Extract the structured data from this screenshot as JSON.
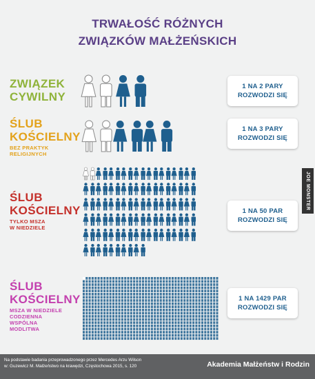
{
  "title": {
    "line1": "TRWAŁOŚĆ RÓŻNYCH",
    "line2": "ZWIĄZKÓW MAŁŻEŃSKICH"
  },
  "colors": {
    "title": "#5a3f86",
    "section1": "#8fb33a",
    "section2": "#e3a21b",
    "section3": "#c4302b",
    "section4": "#c33fae",
    "figure": "#1f5f8e",
    "box_text": "#1f5f8e"
  },
  "sections": [
    {
      "line1": "ZWIĄZEK",
      "line2": "CYWILNY",
      "sub": [],
      "ratio_line1": "1 NA 2 PARY",
      "ratio_line2": "ROZWODZI SIĘ",
      "pairs_total": 2,
      "pairs_divorcing": 1
    },
    {
      "line1": "ŚLUB",
      "line2": "KOŚCIELNY",
      "sub": [
        "BEZ PRAKTYK",
        "RELIGIJNYCH"
      ],
      "ratio_line1": "1 NA 3 PARY",
      "ratio_line2": "ROZWODZI SIĘ",
      "pairs_total": 3,
      "pairs_divorcing": 1
    },
    {
      "line1": "ŚLUB",
      "line2": "KOŚCIELNY",
      "sub": [
        "TYLKO MSZA",
        "W NIEDZIELE"
      ],
      "ratio_line1": "1 NA 50 PAR",
      "ratio_line2": "ROZWODZI SIĘ",
      "pairs_total": 50,
      "pairs_divorcing": 1
    },
    {
      "line1": "ŚLUB",
      "line2": "KOŚCIELNY",
      "sub": [
        "MSZA W NIEDZIELE",
        "CODZIENNA",
        "WSPÓLNA",
        "MODLITWA"
      ],
      "ratio_line1": "1 NA 1429 PAR",
      "ratio_line2": "ROZWODZI SIĘ",
      "pairs_total": 1429,
      "pairs_divorcing": 1
    }
  ],
  "watermark": "JOE MONSTER",
  "footer": {
    "source_line1": "Na podstawie badania przeprowadzonego przez Mercedes Arzu Wilson",
    "source_line2": "w: Guzewicz M. Małżeństwo na krawędzi, Częstochowa 2015, s. 120",
    "organization": "Akademia Małżeństw i Rodzin"
  }
}
